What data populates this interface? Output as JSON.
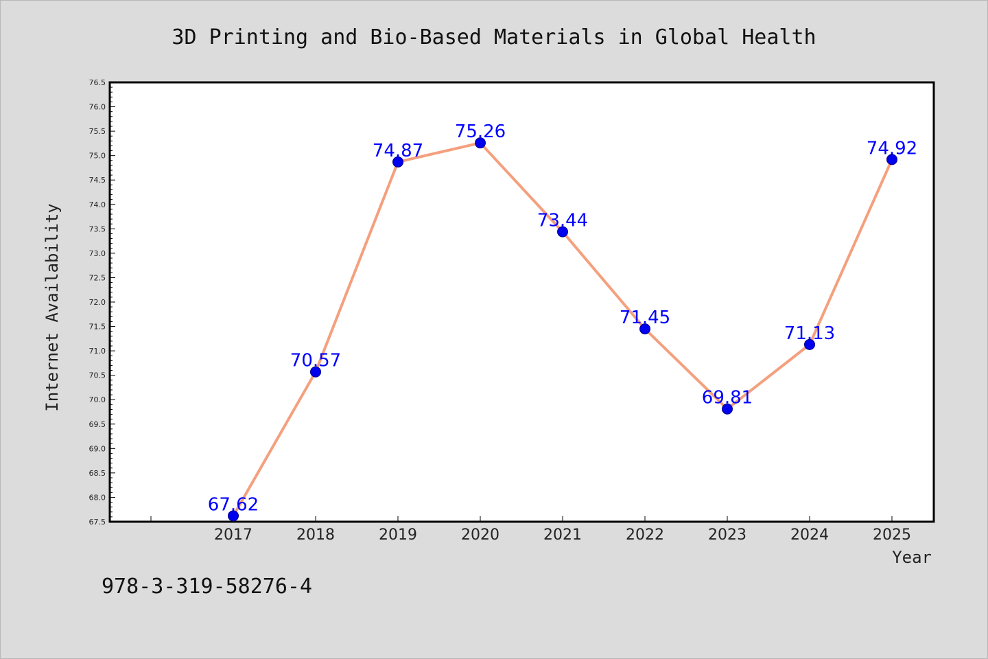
{
  "chart_data": {
    "type": "line",
    "title": "3D Printing and Bio-Based Materials in Global Health",
    "xlabel": "Year",
    "ylabel": "Internet Availability",
    "categories": [
      "2017",
      "2018",
      "2019",
      "2020",
      "2021",
      "2022",
      "2023",
      "2024",
      "2025"
    ],
    "series": [
      {
        "values": [
          67.62,
          70.57,
          74.87,
          75.26,
          73.44,
          71.45,
          69.81,
          71.13,
          74.92
        ]
      }
    ],
    "data_labels": [
      "67.62",
      "70.57",
      "74.87",
      "75.26",
      "73.44",
      "71.45",
      "69.81",
      "71.13",
      "74.92"
    ],
    "ylim": [
      67.5,
      76.5
    ],
    "y_ticks": [
      "67.5",
      "68.0",
      "68.5",
      "69.0",
      "69.5",
      "70.0",
      "70.5",
      "71.0",
      "71.5",
      "72.0",
      "72.5",
      "73.0",
      "73.5",
      "74.0",
      "74.5",
      "75.0",
      "75.5",
      "76.0",
      "76.5"
    ],
    "grid": false,
    "legend": "none",
    "line_color": "#f4a07e",
    "marker_color": "#0000ee",
    "label_color": "#0000ff"
  },
  "annotation": {
    "isbn": "978-3-319-58276-4"
  }
}
